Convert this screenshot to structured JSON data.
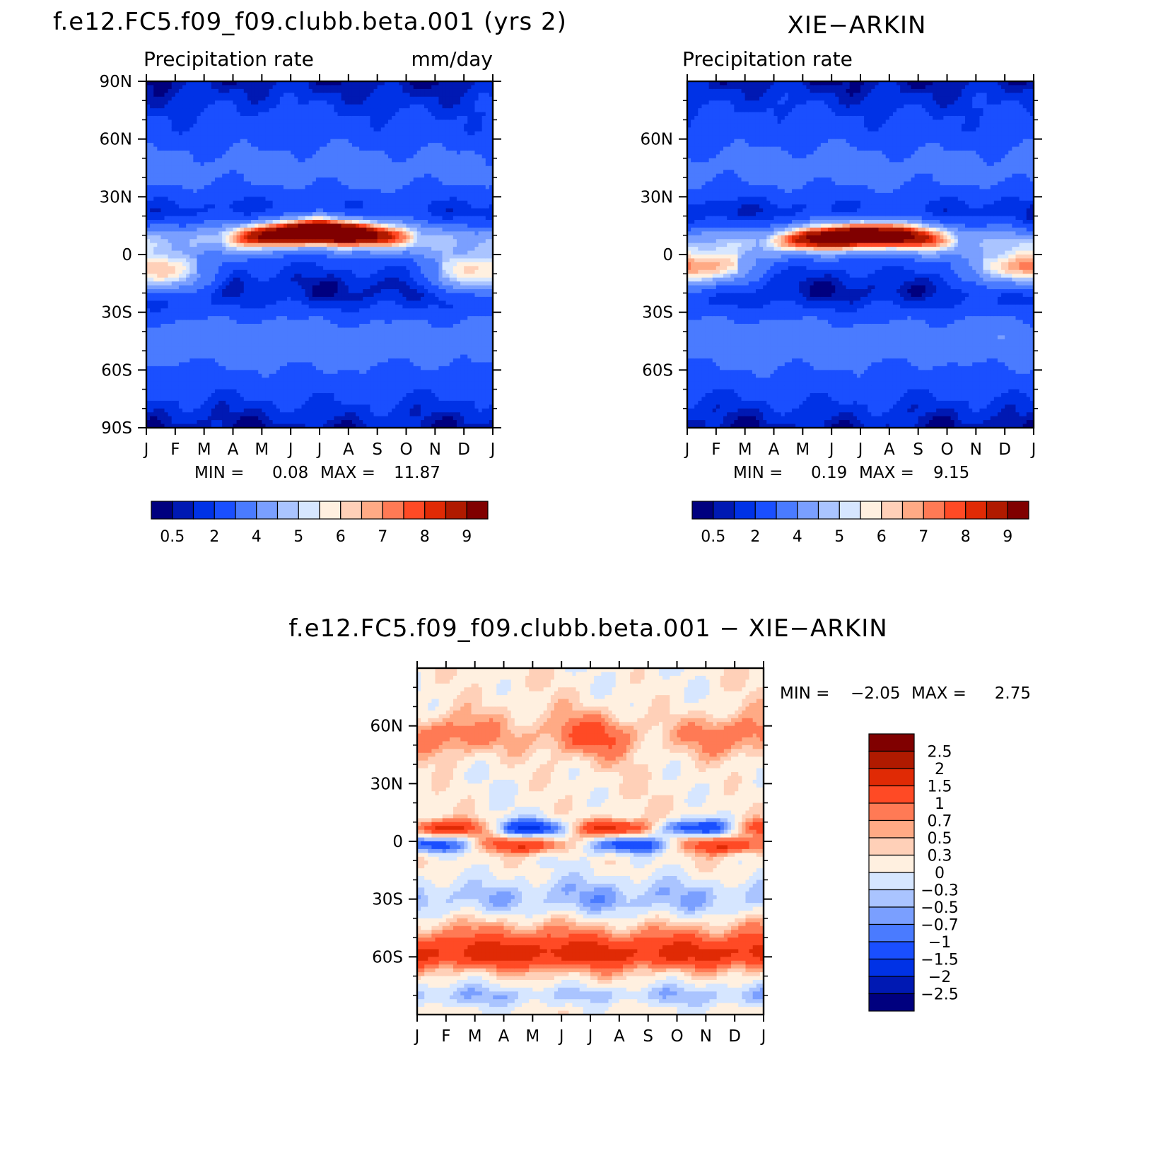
{
  "chart_data": [
    {
      "type": "heatmap",
      "title": "f.e12.FC5.f09_f09.clubb.beta.001 (yrs 2)",
      "subtitle_left": "Precipitation rate",
      "subtitle_right": "mm/day",
      "x_tick_labels": [
        "J",
        "F",
        "M",
        "A",
        "M",
        "J",
        "J",
        "A",
        "S",
        "O",
        "N",
        "D",
        "J"
      ],
      "y_tick_labels": [
        "90N",
        "60N",
        "30N",
        "0",
        "30S",
        "60S",
        "90S"
      ],
      "y_tick_values": [
        90,
        60,
        30,
        0,
        -30,
        -60,
        -90
      ],
      "ylim": [
        -90,
        90
      ],
      "stats": {
        "min_label": "MIN =",
        "min": "0.08",
        "max_label": "MAX =",
        "max": "11.87"
      },
      "colorbar": {
        "orientation": "horizontal",
        "labels": [
          "0.5",
          "2",
          "4",
          "5",
          "6",
          "7",
          "8",
          "9"
        ],
        "colors": [
          "#00007f",
          "#0019b3",
          "#0032e6",
          "#1a4fff",
          "#4a7bff",
          "#7a9fff",
          "#aac4ff",
          "#d6e6ff",
          "#fff0e0",
          "#ffd0b8",
          "#ffaa85",
          "#ff7a55",
          "#ff4a25",
          "#e02a05",
          "#b01a00",
          "#800000"
        ]
      },
      "features": {
        "itcz_peak_lat": [
          6,
          7,
          8,
          9,
          10,
          11,
          12,
          11,
          10,
          9,
          8,
          7,
          6
        ],
        "itcz_peak_value": 11.87,
        "south_band_lat": -12,
        "north_storm_lat": 45,
        "south_storm_lat": -45
      }
    },
    {
      "type": "heatmap",
      "title": "XIE−ARKIN",
      "subtitle_left": "Precipitation rate",
      "x_tick_labels": [
        "J",
        "F",
        "M",
        "A",
        "M",
        "J",
        "J",
        "A",
        "S",
        "O",
        "N",
        "D",
        "J"
      ],
      "y_tick_labels": [
        "60N",
        "30N",
        "0",
        "30S",
        "60S"
      ],
      "y_tick_values": [
        60,
        30,
        0,
        -30,
        -60
      ],
      "ylim": [
        -90,
        90
      ],
      "stats": {
        "min_label": "MIN =",
        "min": "0.19",
        "max_label": "MAX =",
        "max": "9.15"
      },
      "colorbar": {
        "orientation": "horizontal",
        "labels": [
          "0.5",
          "2",
          "4",
          "5",
          "6",
          "7",
          "8",
          "9"
        ],
        "colors": [
          "#00007f",
          "#0019b3",
          "#0032e6",
          "#1a4fff",
          "#4a7bff",
          "#7a9fff",
          "#aac4ff",
          "#d6e6ff",
          "#fff0e0",
          "#ffd0b8",
          "#ffaa85",
          "#ff7a55",
          "#ff4a25",
          "#e02a05",
          "#b01a00",
          "#800000"
        ]
      },
      "features": {
        "itcz_peak_lat": [
          4,
          5,
          6,
          7,
          8,
          9,
          10,
          10,
          9,
          8,
          7,
          6,
          4
        ],
        "itcz_peak_value": 9.15,
        "south_band_lat": -10,
        "north_storm_lat": 45,
        "south_storm_lat": -45
      }
    },
    {
      "type": "heatmap",
      "title": "f.e12.FC5.f09_f09.clubb.beta.001 − XIE−ARKIN",
      "x_tick_labels": [
        "J",
        "F",
        "M",
        "A",
        "M",
        "J",
        "J",
        "A",
        "S",
        "O",
        "N",
        "D",
        "J"
      ],
      "y_tick_labels": [
        "60N",
        "30N",
        "0",
        "30S",
        "60S"
      ],
      "y_tick_values": [
        60,
        30,
        0,
        -30,
        -60
      ],
      "ylim": [
        -90,
        90
      ],
      "stats": {
        "min_label": "MIN =",
        "min": "−2.05",
        "max_label": "MAX =",
        "max": "2.75"
      },
      "colorbar": {
        "orientation": "vertical",
        "labels": [
          "2.5",
          "2",
          "1.5",
          "1",
          "0.7",
          "0.5",
          "0.3",
          "0",
          "−0.3",
          "−0.5",
          "−0.7",
          "−1",
          "−1.5",
          "−2",
          "−2.5"
        ],
        "colors": [
          "#800000",
          "#b01a00",
          "#e02a05",
          "#ff4a25",
          "#ff7a55",
          "#ffaa85",
          "#ffd0b8",
          "#fff0e0",
          "#d6e6ff",
          "#aac4ff",
          "#7a9fff",
          "#4a7bff",
          "#1a4fff",
          "#0032e6",
          "#0019b3",
          "#00007f"
        ]
      },
      "features": {
        "south_positive_band_lat": -58,
        "south_positive_value": 1.5,
        "max": 2.75,
        "min": -2.05
      }
    }
  ]
}
